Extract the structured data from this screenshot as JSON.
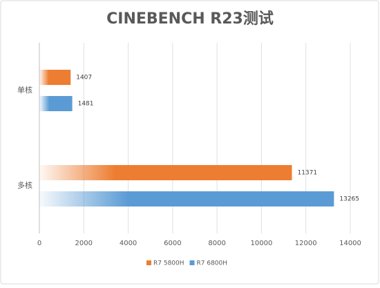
{
  "chart_data": {
    "type": "bar",
    "orientation": "horizontal",
    "title": "CINEBENCH R23测试",
    "categories": [
      "单核",
      "多核"
    ],
    "series": [
      {
        "name": "R7 5800H",
        "color": "#ed7d31",
        "values": [
          1407,
          11371
        ]
      },
      {
        "name": "R7 6800H",
        "color": "#5b9bd5",
        "values": [
          1481,
          13265
        ]
      }
    ],
    "xlim": [
      0,
      14000
    ],
    "xticks": [
      0,
      2000,
      4000,
      6000,
      8000,
      10000,
      12000,
      14000
    ],
    "grid": true,
    "legend": "bottom",
    "gradient": true
  }
}
